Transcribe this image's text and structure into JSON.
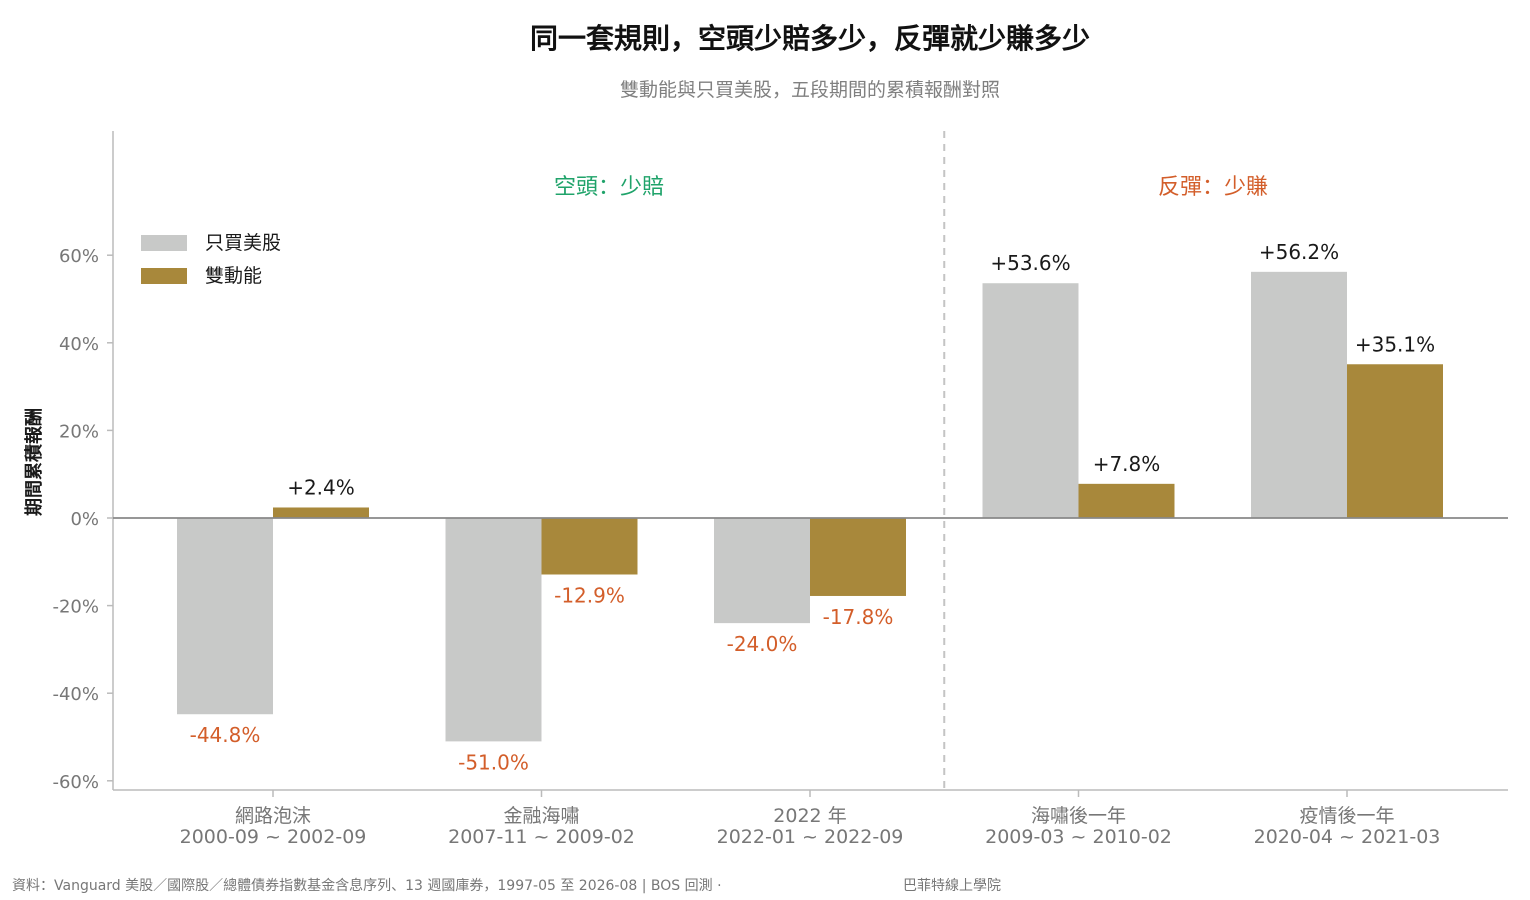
{
  "chart_data": {
    "type": "bar",
    "title": "同一套規則，空頭少賠多少，反彈就少賺多少",
    "subtitle": "雙動能與只買美股，五段期間的累積報酬對照",
    "ylabel": "期間累積報酬",
    "xlabel": "",
    "ylim": [
      -62,
      88
    ],
    "yticks": [
      -60,
      -40,
      -20,
      0,
      20,
      40,
      60
    ],
    "ytick_labels": [
      "-60%",
      "-40%",
      "-20%",
      "0%",
      "20%",
      "40%",
      "60%"
    ],
    "grid": false,
    "legend_position": "top-left",
    "categories": [
      {
        "name": "網路泡沫",
        "period": "2000-09 ~ 2002-09"
      },
      {
        "name": "金融海嘯",
        "period": "2007-11 ~ 2009-02"
      },
      {
        "name": "2022 年",
        "period": "2022-01 ~ 2022-09"
      },
      {
        "name": "海嘯後一年",
        "period": "2009-03 ~ 2010-02"
      },
      {
        "name": "疫情後一年",
        "period": "2020-04 ~ 2021-03"
      }
    ],
    "series": [
      {
        "name": "只買美股",
        "color": "#c8c9c8",
        "values": [
          -44.8,
          -51.0,
          -24.0,
          53.6,
          56.2
        ],
        "labels": [
          "-44.8%",
          "-51.0%",
          "-24.0%",
          "+53.6%",
          "+56.2%"
        ]
      },
      {
        "name": "雙動能",
        "color": "#a8883b",
        "values": [
          2.4,
          -12.9,
          -17.8,
          7.8,
          35.1
        ],
        "labels": [
          "+2.4%",
          "-12.9%",
          "-17.8%",
          "+7.8%",
          "+35.1%"
        ]
      }
    ],
    "label_colors": {
      "positive": "#1a1a1a",
      "negative": "#d35e2a"
    },
    "annotations": [
      {
        "text": "空頭：少賠",
        "color": "#1fa36a"
      },
      {
        "text": "反彈：少賺",
        "color": "#d35e2a"
      }
    ],
    "divider": "dashed vertical line between 2022 年 and 海嘯後一年"
  },
  "footer": {
    "source": "資料：Vanguard 美股／國際股／總體債券指數基金含息序列、13 週國庫券，1997-05 至 2026-08 | BOS 回測 ·",
    "brand": "巴菲特線上學院"
  },
  "colors": {
    "axis": "#bbbbbb",
    "tick_text": "#777777",
    "title": "#111111",
    "subtitle": "#808080",
    "zero_line": "#888888"
  }
}
